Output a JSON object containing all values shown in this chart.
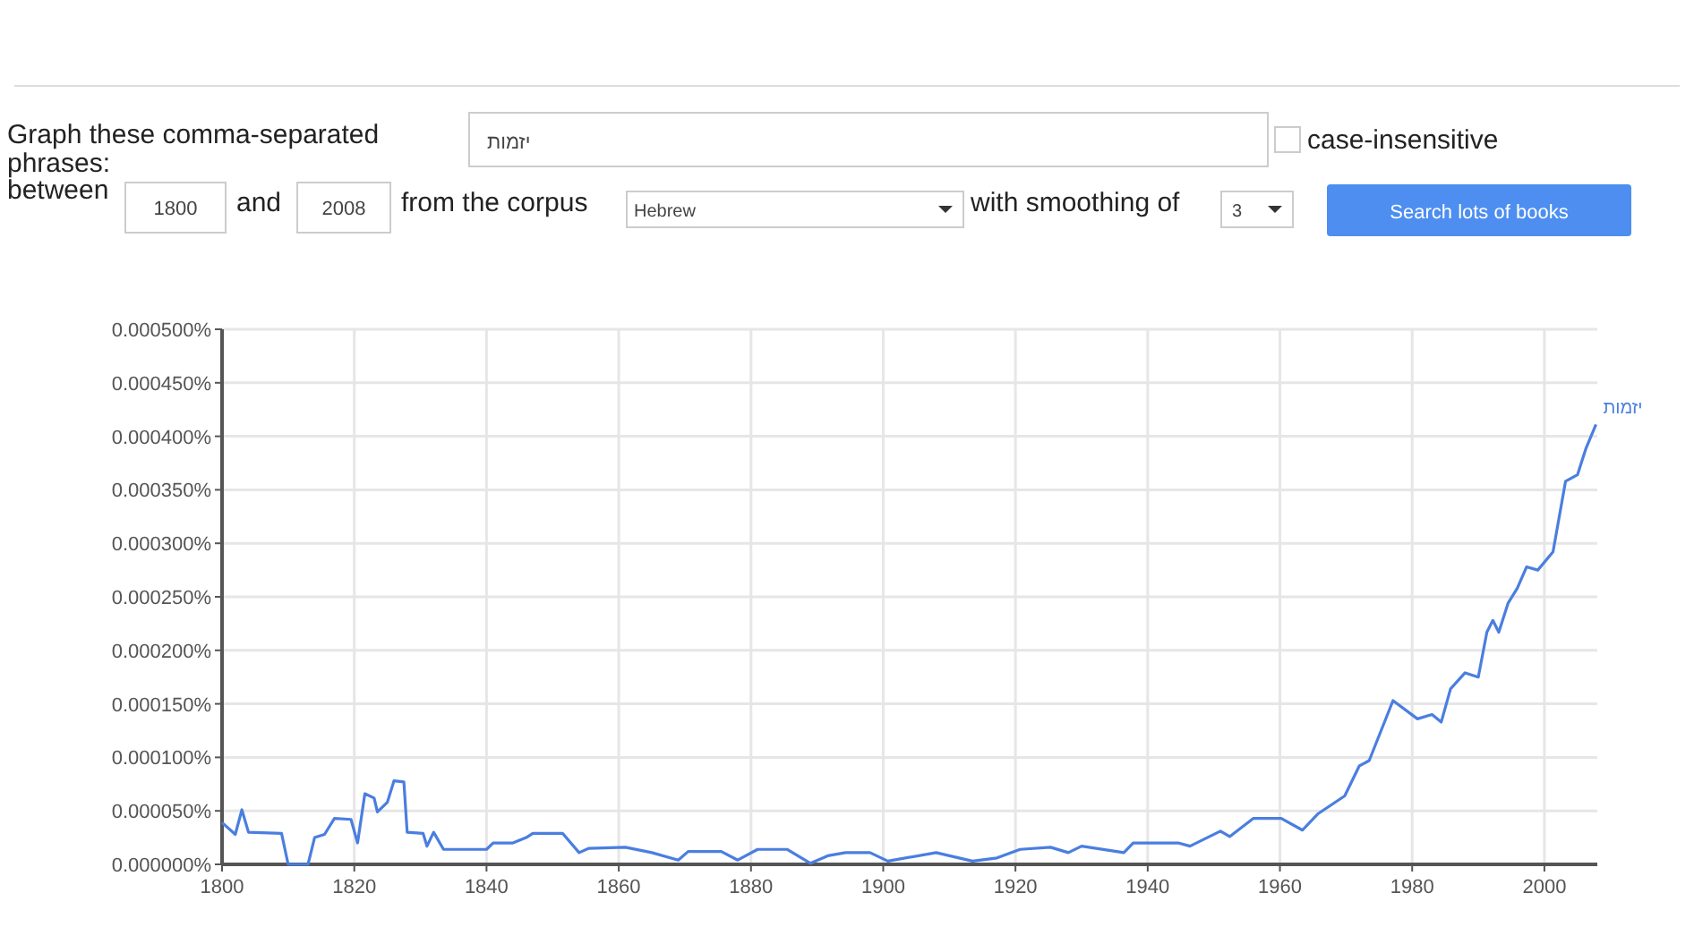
{
  "chart_data": {
    "type": "line",
    "annotations": [
      "Graph these comma-separated phrases:",
      "case-insensitive",
      "between",
      "1800",
      "and",
      "2008",
      "from the corpus",
      "Hebrew",
      "with smoothing of",
      "3",
      "Search lots of books"
    ],
    "series": [
      {
        "name": "יזמות",
        "color": "#4a7ee0",
        "x": [
          1800,
          1802,
          1803,
          1804,
          1809,
          1810,
          1813,
          1814,
          1815.5,
          1817,
          1819.5,
          1820.5,
          1821.6,
          1823,
          1823.5,
          1825,
          1826,
          1827.5,
          1828,
          1830.4,
          1831,
          1832,
          1833.5,
          1840,
          1841,
          1844,
          1846,
          1847,
          1851.5,
          1854,
          1855.5,
          1861,
          1865,
          1869,
          1870.5,
          1875.5,
          1878,
          1881,
          1885.5,
          1889,
          1891.6,
          1894.3,
          1898,
          1900.7,
          1908,
          1913.5,
          1917.2,
          1920.7,
          1925.3,
          1928,
          1930,
          1936.4,
          1937.8,
          1944.6,
          1946.4,
          1951,
          1952.4,
          1956,
          1960.2,
          1963.4,
          1965.7,
          1969.8,
          1972,
          1973.5,
          1977.1,
          1980.8,
          1983,
          1984.4,
          1985.8,
          1988,
          1990,
          1991.3,
          1992.2,
          1993.1,
          1994.5,
          1995.9,
          1997.3,
          1999,
          2001.3,
          2003.2,
          2005,
          2006.3,
          2007.8
        ],
        "values": [
          3.9e-05,
          2.8e-05,
          5.1e-05,
          3e-05,
          2.9e-05,
          0,
          0,
          2.5e-05,
          2.8e-05,
          4.3e-05,
          4.2e-05,
          2e-05,
          6.6e-05,
          6.2e-05,
          4.9e-05,
          5.8e-05,
          7.8e-05,
          7.7e-05,
          3e-05,
          2.9e-05,
          1.7e-05,
          3e-05,
          1.4e-05,
          1.4e-05,
          2e-05,
          2e-05,
          2.5e-05,
          2.9e-05,
          2.9e-05,
          1.1e-05,
          1.5e-05,
          1.6e-05,
          1.1e-05,
          4e-06,
          1.2e-05,
          1.2e-05,
          4e-06,
          1.4e-05,
          1.4e-05,
          1e-06,
          8e-06,
          1.1e-05,
          1.1e-05,
          3e-06,
          1.1e-05,
          3e-06,
          6e-06,
          1.4e-05,
          1.6e-05,
          1.1e-05,
          1.7e-05,
          1.1e-05,
          2e-05,
          2e-05,
          1.7e-05,
          3.1e-05,
          2.6e-05,
          4.3e-05,
          4.3e-05,
          3.2e-05,
          4.7e-05,
          6.4e-05,
          9.2e-05,
          9.7e-05,
          0.000153,
          0.000136,
          0.00014,
          0.000133,
          0.000164,
          0.000179,
          0.000175,
          0.000217,
          0.000228,
          0.000217,
          0.000244,
          0.000258,
          0.000278,
          0.000275,
          0.000292,
          0.000358,
          0.000364,
          0.000389,
          0.000411
        ]
      }
    ],
    "xlim": [
      1800,
      2008
    ],
    "xticks": [
      1800,
      1820,
      1840,
      1860,
      1880,
      1900,
      1920,
      1940,
      1960,
      1980,
      2000
    ],
    "ylim": [
      0,
      0.0005
    ],
    "yticks": [
      {
        "value": 0,
        "label": "0.000000%"
      },
      {
        "value": 5e-05,
        "label": "0.000050%"
      },
      {
        "value": 0.0001,
        "label": "0.000100%"
      },
      {
        "value": 0.00015,
        "label": "0.000150%"
      },
      {
        "value": 0.0002,
        "label": "0.000200%"
      },
      {
        "value": 0.00025,
        "label": "0.000250%"
      },
      {
        "value": 0.0003,
        "label": "0.000300%"
      },
      {
        "value": 0.00035,
        "label": "0.000350%"
      },
      {
        "value": 0.0004,
        "label": "0.000400%"
      },
      {
        "value": 0.00045,
        "label": "0.000450%"
      },
      {
        "value": 0.0005,
        "label": "0.000500%"
      }
    ],
    "grid": true,
    "marker": "none",
    "line_style": "solid"
  }
}
